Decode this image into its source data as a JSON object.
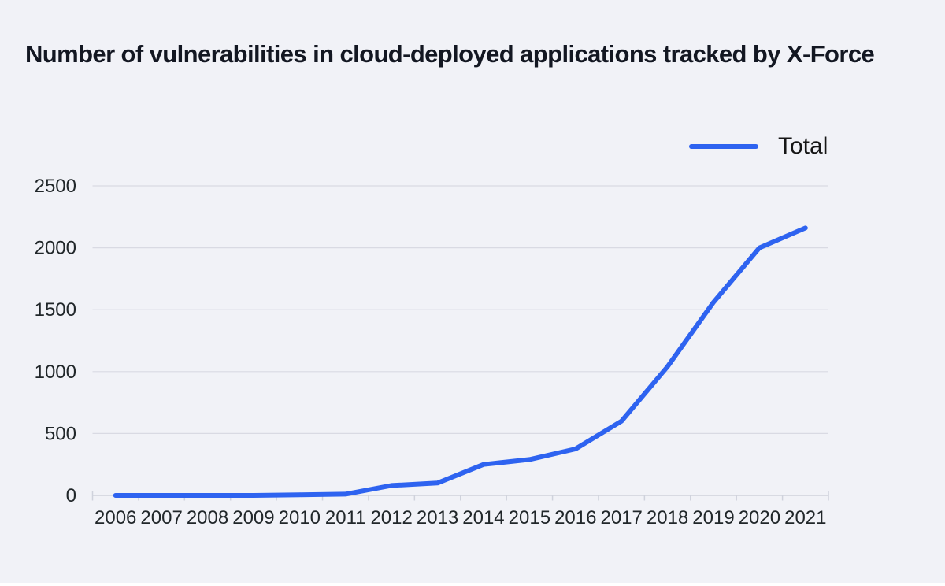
{
  "title": "Number of vulnerabilities in cloud-deployed applications tracked by X-Force",
  "chart_data": {
    "type": "line",
    "title": "Number of vulnerabilities in cloud-deployed applications tracked by X-Force",
    "categories": [
      "2006",
      "2007",
      "2008",
      "2009",
      "2010",
      "2011",
      "2012",
      "2013",
      "2014",
      "2015",
      "2016",
      "2017",
      "2018",
      "2019",
      "2020",
      "2021"
    ],
    "series": [
      {
        "name": "Total",
        "color": "#2e63f0",
        "values": [
          0,
          0,
          0,
          0,
          5,
          10,
          80,
          100,
          250,
          290,
          375,
          600,
          1040,
          1560,
          2000,
          2160
        ]
      }
    ],
    "xlabel": "",
    "ylabel": "",
    "ylim": [
      0,
      2500
    ],
    "yticks": [
      0,
      500,
      1000,
      1500,
      2000,
      2500
    ],
    "grid": "horizontal",
    "legend_position": "top-right",
    "colors": {
      "line": "#2e63f0",
      "grid": "#d9dae3",
      "axis": "#cfd2dc",
      "tick_text": "#21272a",
      "title_text": "#131722",
      "background": "#f1f2f7"
    }
  }
}
